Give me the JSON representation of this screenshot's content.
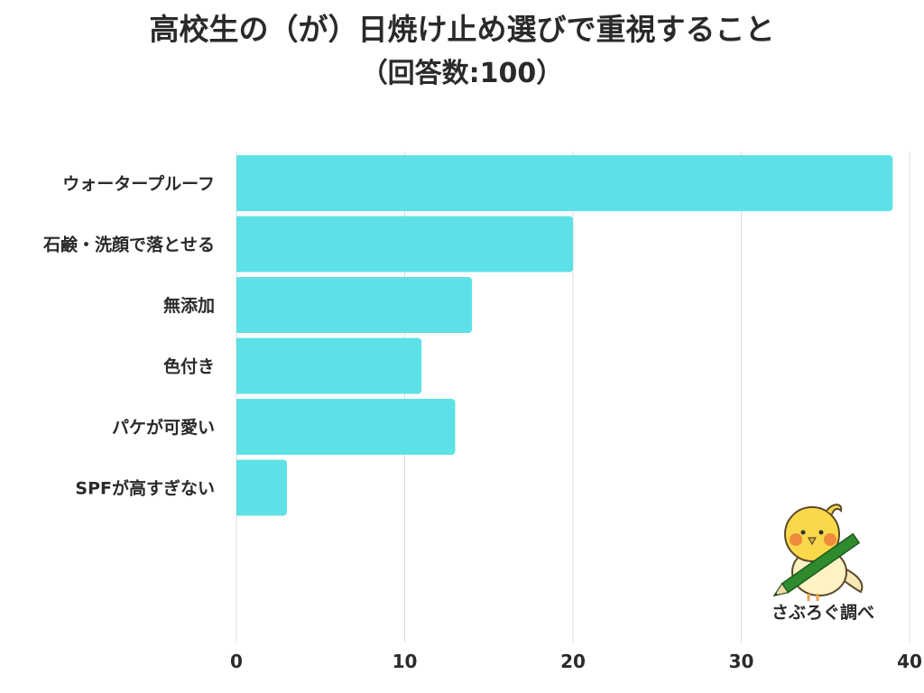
{
  "header": {
    "title": "高校生の（が）日焼け止め選びで重視すること",
    "subtitle": "（回答数:100）"
  },
  "chart_data": {
    "type": "bar",
    "orientation": "horizontal",
    "title": "高校生の（が）日焼け止め選びで重視すること",
    "subtitle": "（回答数:100）",
    "categories": [
      "ウォータープルーフ",
      "石鹸・洗顔で落とせる",
      "無添加",
      "色付き",
      "パケが可愛い",
      "SPFが高すぎない"
    ],
    "values": [
      39,
      20,
      14,
      11,
      13,
      3
    ],
    "xlim": [
      0,
      40
    ],
    "xticks": [
      0,
      10,
      20,
      30,
      40
    ],
    "grid": true,
    "bar_color": "#5de1e6",
    "grid_color": "#dddddd"
  },
  "credit": {
    "label": "さぶろぐ調べ",
    "mascot_icon": "bird-with-pencil-icon"
  }
}
